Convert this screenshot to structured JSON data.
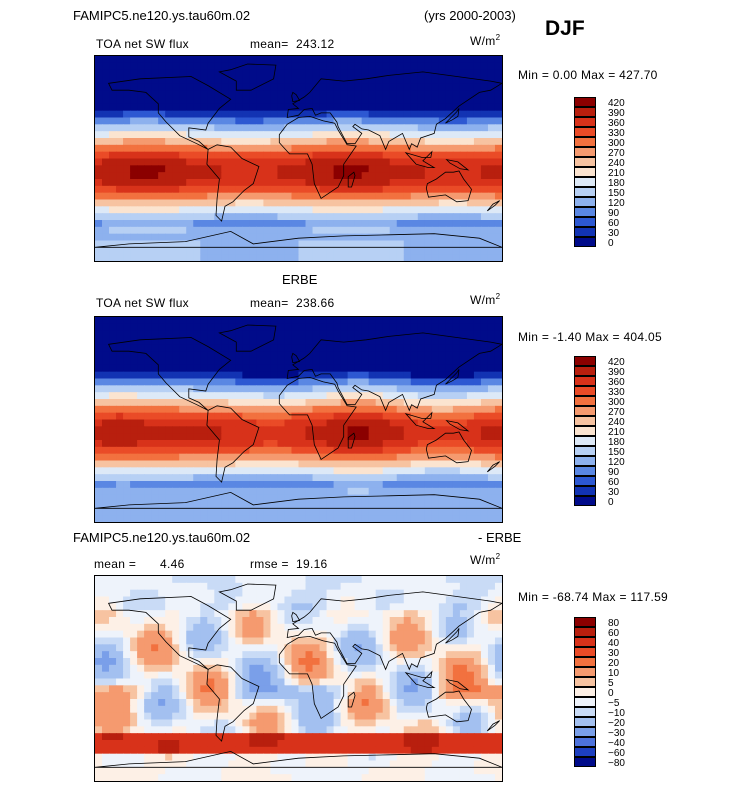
{
  "header": {
    "case_name": "FAMIPC5.ne120.ys.tau60m.02",
    "years": "(yrs 2000-2003)",
    "season": "DJF"
  },
  "colors": {
    "land_outline": "#000000"
  },
  "chart_data": [
    {
      "type": "heatmap",
      "name": "model",
      "variable": "TOA net SW flux",
      "units": "W/m",
      "units_exp": "2",
      "mean_label": "mean=",
      "mean": "243.12",
      "range_text": "Min =    0.00 Max = 427.70",
      "min": 0.0,
      "max": 427.7,
      "levels": [
        420,
        390,
        360,
        330,
        300,
        270,
        240,
        210,
        180,
        150,
        120,
        90,
        60,
        30,
        0
      ],
      "level_labels": [
        "420",
        "390",
        "360",
        "330",
        "300",
        "270",
        "240",
        "210",
        "180",
        "150",
        "120",
        "90",
        "60",
        "30",
        "0"
      ],
      "palette": [
        "#8b0000",
        "#b81f0e",
        "#d8321a",
        "#ea4b27",
        "#f2713f",
        "#f59a6f",
        "#f7c3a1",
        "#fbe4d0",
        "#dde9f7",
        "#b7d0f4",
        "#8db1ee",
        "#5a87e3",
        "#2d58d2",
        "#1233b3",
        "#000b8a"
      ]
    },
    {
      "type": "heatmap",
      "name": "obs",
      "title": "ERBE",
      "variable": "TOA net SW flux",
      "units": "W/m",
      "units_exp": "2",
      "mean_label": "mean=",
      "mean": "238.66",
      "range_text": "Min =  -1.40 Max = 404.05",
      "min": -1.4,
      "max": 404.05,
      "levels": [
        420,
        390,
        360,
        330,
        300,
        270,
        240,
        210,
        180,
        150,
        120,
        90,
        60,
        30,
        0
      ],
      "level_labels": [
        "420",
        "390",
        "360",
        "330",
        "300",
        "270",
        "240",
        "210",
        "180",
        "150",
        "120",
        "90",
        "60",
        "30",
        "0"
      ],
      "palette": [
        "#8b0000",
        "#b81f0e",
        "#d8321a",
        "#ea4b27",
        "#f2713f",
        "#f59a6f",
        "#f7c3a1",
        "#fbe4d0",
        "#dde9f7",
        "#b7d0f4",
        "#8db1ee",
        "#5a87e3",
        "#2d58d2",
        "#1233b3",
        "#000b8a"
      ]
    },
    {
      "type": "heatmap",
      "name": "diff",
      "title_left": "FAMIPC5.ne120.ys.tau60m.02",
      "title_right": "- ERBE",
      "units": "W/m",
      "units_exp": "2",
      "mean_label": "mean =",
      "mean": "4.46",
      "rmse_label": "rmse =",
      "rmse": "19.16",
      "range_text": "Min = -68.74 Max = 117.59",
      "min": -68.74,
      "max": 117.59,
      "levels": [
        80,
        60,
        40,
        30,
        20,
        10,
        5,
        0,
        -5,
        -10,
        -20,
        -30,
        -40,
        -60,
        -80
      ],
      "level_labels": [
        "80",
        "60",
        "40",
        "30",
        "20",
        "10",
        "5",
        "0",
        "−5",
        "−10",
        "−20",
        "−30",
        "−40",
        "−60",
        "−80"
      ],
      "palette": [
        "#8b0000",
        "#b81f0e",
        "#d8321a",
        "#ea4b27",
        "#f2713f",
        "#f59a6f",
        "#f7c3a1",
        "#fdf0e6",
        "#eef3fb",
        "#c9dbf6",
        "#a3c0f0",
        "#7a9fe9",
        "#4d72dc",
        "#1d3fc0",
        "#000b8a"
      ]
    }
  ]
}
